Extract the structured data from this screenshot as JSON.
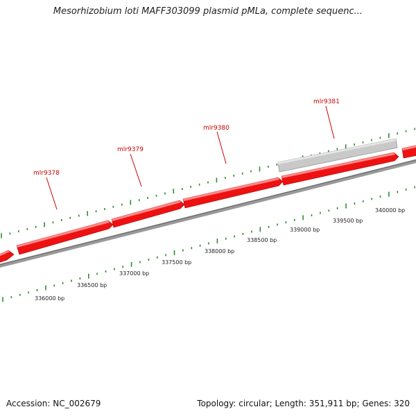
{
  "title": "Mesorhizobium loti MAFF303099 plasmid pMLa, complete sequenc...",
  "footer": {
    "accession": "Accession: NC_002679",
    "summary": "Topology: circular; Length: 351,911 bp; Genes: 320"
  },
  "colors": {
    "gene_fill": "#ee1111",
    "gene_highlight": "#ff8888",
    "gene_label": "#cc0000",
    "selected_fill": "#c8c8c8",
    "tick": "#2e8b2e",
    "backbone": "#888888"
  },
  "genes": [
    {
      "name": "mlr9378"
    },
    {
      "name": "mlr9379"
    },
    {
      "name": "mlr9380"
    },
    {
      "name": "mlr9381"
    }
  ],
  "bp_ticks": [
    "336000 bp",
    "336500 bp",
    "337000 bp",
    "337500 bp",
    "338000 bp",
    "338500 bp",
    "339000 bp",
    "339500 bp",
    "340000 bp"
  ]
}
